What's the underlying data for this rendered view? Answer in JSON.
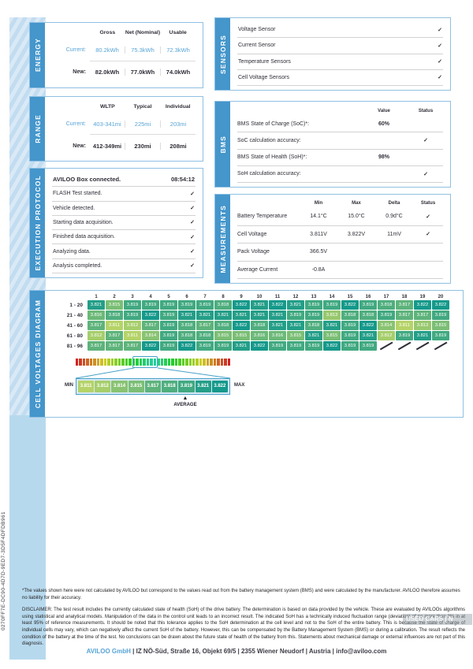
{
  "glyphs": {
    "check": "✓",
    "arrow_up": "▲"
  },
  "colors": {
    "accent_blue": "#4496cb",
    "highlight_blue": "#58a4d6",
    "scale_low": "#b5d368",
    "scale_high": "#15998b"
  },
  "page": {
    "uuid_sidebar": "0270FF7E-DC90-4D7D-9ED7-3D5F4DFDB961",
    "footnote": "*The values shown here were not calculated by AVILOO but correspond to the values read out from the battery management system (BMS) and were calculated by the manufacturer. AVILOO therefore assumes no liability for their accuracy.",
    "disclaimer": "DISCLAIMER: The test result includes the currently calculated state of health (SoH) of the drive battery. The determination is based on data provided by the vehicle. These are evaluated by AVILOOs algorithms using statistical and analytical models. Manipulation of the data in the control unit leads to an incorrect result. The indicated SoH has a technically induced fluctuation range (deviation) of no more than 3% in at least 95% of reference measurements. It should be noted that this tolerance applies to the SoH determination at the cell level and not to the SoH of the entire battery. This is because the state of charge of individual cells may vary, which can negatively affect the current SoH of the battery. However, this can be compensated by the Battery Management System (BMS) or during a calibration. The result reflects the condition of the battery at the time of the test. No conclusions can be drawn about the future state of health of the battery from this. Statements about mechanical damage or external influences are not part of this diagnosis.",
    "watermark": "USED CARS | N",
    "footer_company": "AVILOO GmbH",
    "footer_rest": " | IZ NÖ-Süd, Straße 16, Objekt 69/5 | 2355 Wiener Neudorf | Austria | info@aviloo.com"
  },
  "energy": {
    "title": "ENERGY",
    "columns": [
      "Gross",
      "Net (Nominal)",
      "Usable"
    ],
    "rows": [
      {
        "label": "Current:",
        "values": [
          "80.2kWh",
          "75.3kWh",
          "72.3kWh"
        ],
        "highlight": true
      },
      {
        "label": "New:",
        "values": [
          "82.0kWh",
          "77.0kWh",
          "74.0kWh"
        ],
        "highlight": false
      }
    ]
  },
  "range": {
    "title": "RANGE",
    "columns": [
      "WLTP",
      "Typical",
      "Individual"
    ],
    "rows": [
      {
        "label": "Current:",
        "values": [
          "403-341mi",
          "225mi",
          "203mi"
        ],
        "highlight": true
      },
      {
        "label": "New:",
        "values": [
          "412-349mi",
          "230mi",
          "208mi"
        ],
        "highlight": false
      }
    ]
  },
  "execution_protocol": {
    "title": "EXECUTION PROTOCOL",
    "rows": [
      {
        "label": "AVILOO Box connected.",
        "value": "08:54:12",
        "bold": true
      },
      {
        "label": "FLASH Test started.",
        "check": true
      },
      {
        "label": "Vehicle detected.",
        "check": true
      },
      {
        "label": "Starting data acquisition.",
        "check": true
      },
      {
        "label": "Finished data acquisition.",
        "check": true
      },
      {
        "label": "Analyzing data.",
        "check": true
      },
      {
        "label": "Analysis completed.",
        "check": true
      }
    ]
  },
  "sensors": {
    "title": "SENSORS",
    "rows": [
      {
        "label": "Voltage Sensor",
        "check": true
      },
      {
        "label": "Current Sensor",
        "check": true
      },
      {
        "label": "Temperature Sensors",
        "check": true
      },
      {
        "label": "Cell Voltage Sensors",
        "check": true
      }
    ]
  },
  "bms": {
    "title": "BMS",
    "columns": [
      "Value",
      "Status"
    ],
    "rows": [
      {
        "label": "BMS State of Charge (SoC)*:",
        "value": "60%"
      },
      {
        "label": "SoC calculation accuracy:",
        "check": true
      },
      {
        "label": "BMS State of Health (SoH)*:",
        "value": "98%"
      },
      {
        "label": "SoH calculation accuracy:",
        "check": true
      }
    ]
  },
  "measurements": {
    "title": "MEASUREMENTS",
    "columns": [
      "Min",
      "Max",
      "Delta",
      "Status"
    ],
    "rows": [
      {
        "label": "Battery Temperature",
        "min": "14.1°C",
        "max": "15.0°C",
        "delta": "0.9d°C",
        "check": true
      },
      {
        "label": "Cell Voltage",
        "min": "3.811V",
        "max": "3.822V",
        "delta": "11mV",
        "check": true
      },
      {
        "label": "Pack Voltage",
        "min": "366.5V"
      },
      {
        "label": "Average Current",
        "min": "-0.8A"
      }
    ]
  },
  "cell_voltages": {
    "title": "CELL VOLTAGES DIAGRAM",
    "col_headers": [
      1,
      2,
      3,
      4,
      5,
      6,
      7,
      8,
      9,
      10,
      11,
      12,
      13,
      14,
      15,
      16,
      17,
      18,
      19,
      20
    ],
    "row_labels": [
      "1 - 20",
      "21 - 40",
      "41 - 60",
      "61 - 80",
      "81 - 96"
    ],
    "values": [
      [
        3.821,
        3.815,
        3.819,
        3.819,
        3.819,
        3.819,
        3.819,
        3.818,
        3.822,
        3.821,
        3.822,
        3.821,
        3.819,
        3.819,
        3.822,
        3.819,
        3.818,
        3.817,
        3.822,
        3.822
      ],
      [
        3.816,
        3.818,
        3.819,
        3.822,
        3.819,
        3.821,
        3.821,
        3.821,
        3.821,
        3.821,
        3.821,
        3.819,
        3.819,
        3.813,
        3.818,
        3.818,
        3.819,
        3.817,
        3.817,
        3.819
      ],
      [
        3.817,
        3.811,
        3.812,
        3.817,
        3.819,
        3.818,
        3.817,
        3.818,
        3.822,
        3.818,
        3.821,
        3.821,
        3.818,
        3.821,
        3.819,
        3.822,
        3.814,
        3.811,
        3.813,
        3.815
      ],
      [
        3.812,
        3.817,
        3.811,
        3.814,
        3.819,
        3.818,
        3.818,
        3.815,
        3.815,
        3.816,
        3.816,
        3.815,
        3.821,
        3.815,
        3.819,
        3.821,
        3.812,
        3.819,
        3.821,
        3.819
      ],
      [
        3.817,
        3.817,
        3.817,
        3.822,
        3.819,
        3.822,
        3.819,
        3.819,
        3.821,
        3.822,
        3.819,
        3.819,
        3.819,
        3.822,
        3.819,
        3.819,
        null,
        null,
        null,
        null
      ]
    ],
    "vmin": 3.811,
    "vmax": 3.822,
    "scale_values": [
      "3.811",
      "3.812",
      "3.814",
      "3.815",
      "3.817",
      "3.818",
      "3.819",
      "3.821",
      "3.822"
    ],
    "average_index": 6,
    "min_label": "MIN",
    "max_label": "MAX",
    "average_label": "AVERAGE"
  }
}
